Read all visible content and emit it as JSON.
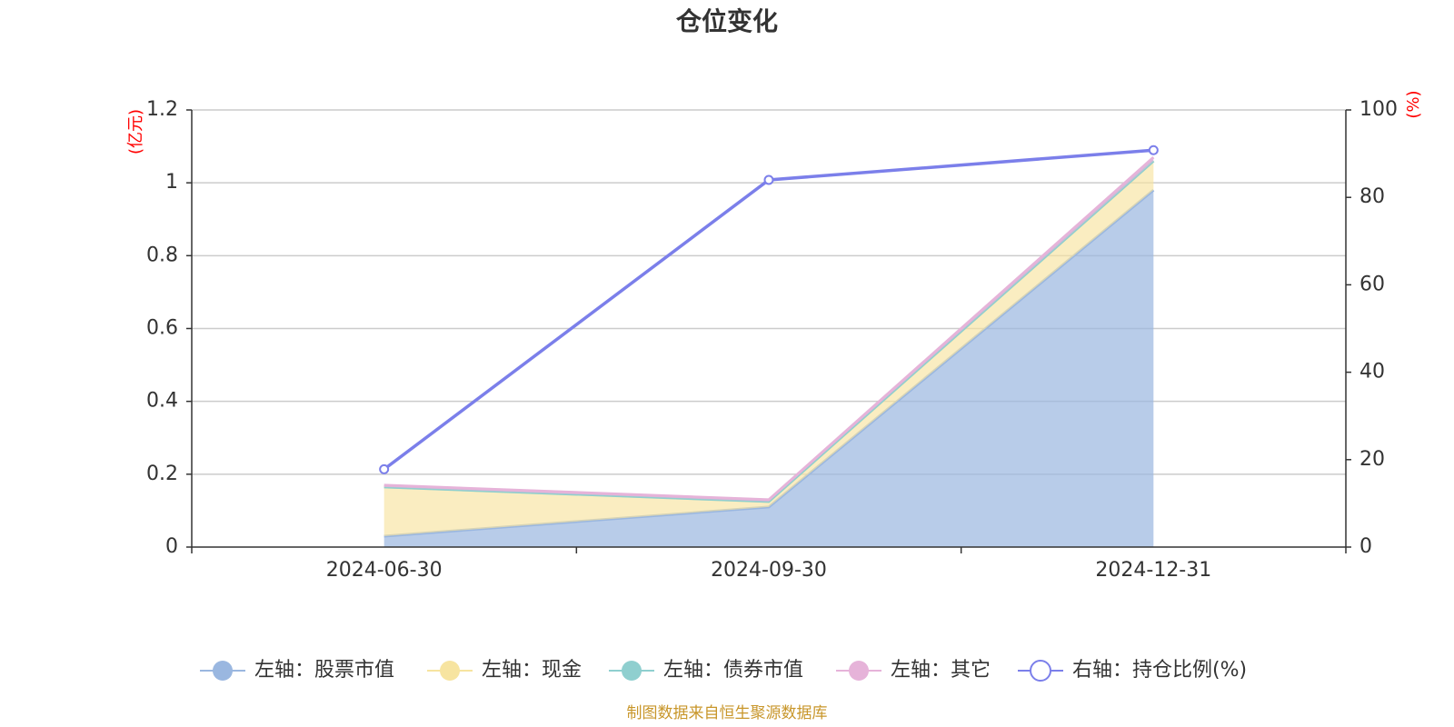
{
  "chart_data": {
    "type": "area",
    "title": "仓位变化",
    "categories": [
      "2024-06-30",
      "2024-09-30",
      "2024-12-31"
    ],
    "left_axis": {
      "unit": "(亿元)",
      "ylim": [
        0,
        1.2
      ],
      "ticks": [
        "0",
        "0.2",
        "0.4",
        "0.6",
        "0.8",
        "1",
        "1.2"
      ]
    },
    "right_axis": {
      "unit": "(%)",
      "ylim": [
        0,
        100
      ],
      "ticks": [
        "0",
        "20",
        "40",
        "60",
        "80",
        "100"
      ]
    },
    "stacked": true,
    "grid": true,
    "legend_position": "bottom",
    "series": [
      {
        "name": "左轴：股票市值",
        "axis": "left",
        "kind": "area",
        "color": "#9ab7e0",
        "values": [
          0.03,
          0.11,
          0.98
        ]
      },
      {
        "name": "左轴：现金",
        "axis": "left",
        "kind": "area",
        "color": "#f7e4a0",
        "values": [
          0.135,
          0.015,
          0.08
        ]
      },
      {
        "name": "左轴：债券市值",
        "axis": "left",
        "kind": "area",
        "color": "#8fcfcf",
        "values": [
          0,
          0,
          0
        ]
      },
      {
        "name": "左轴：其它",
        "axis": "left",
        "kind": "area",
        "color": "#e6b3d9",
        "values": [
          0.005,
          0.005,
          0.01
        ]
      },
      {
        "name": "右轴：持仓比例(%)",
        "axis": "right",
        "kind": "line",
        "color": "#7b7fea",
        "values": [
          17.8,
          84,
          90.8
        ]
      }
    ],
    "source": "制图数据来自恒生聚源数据库"
  }
}
